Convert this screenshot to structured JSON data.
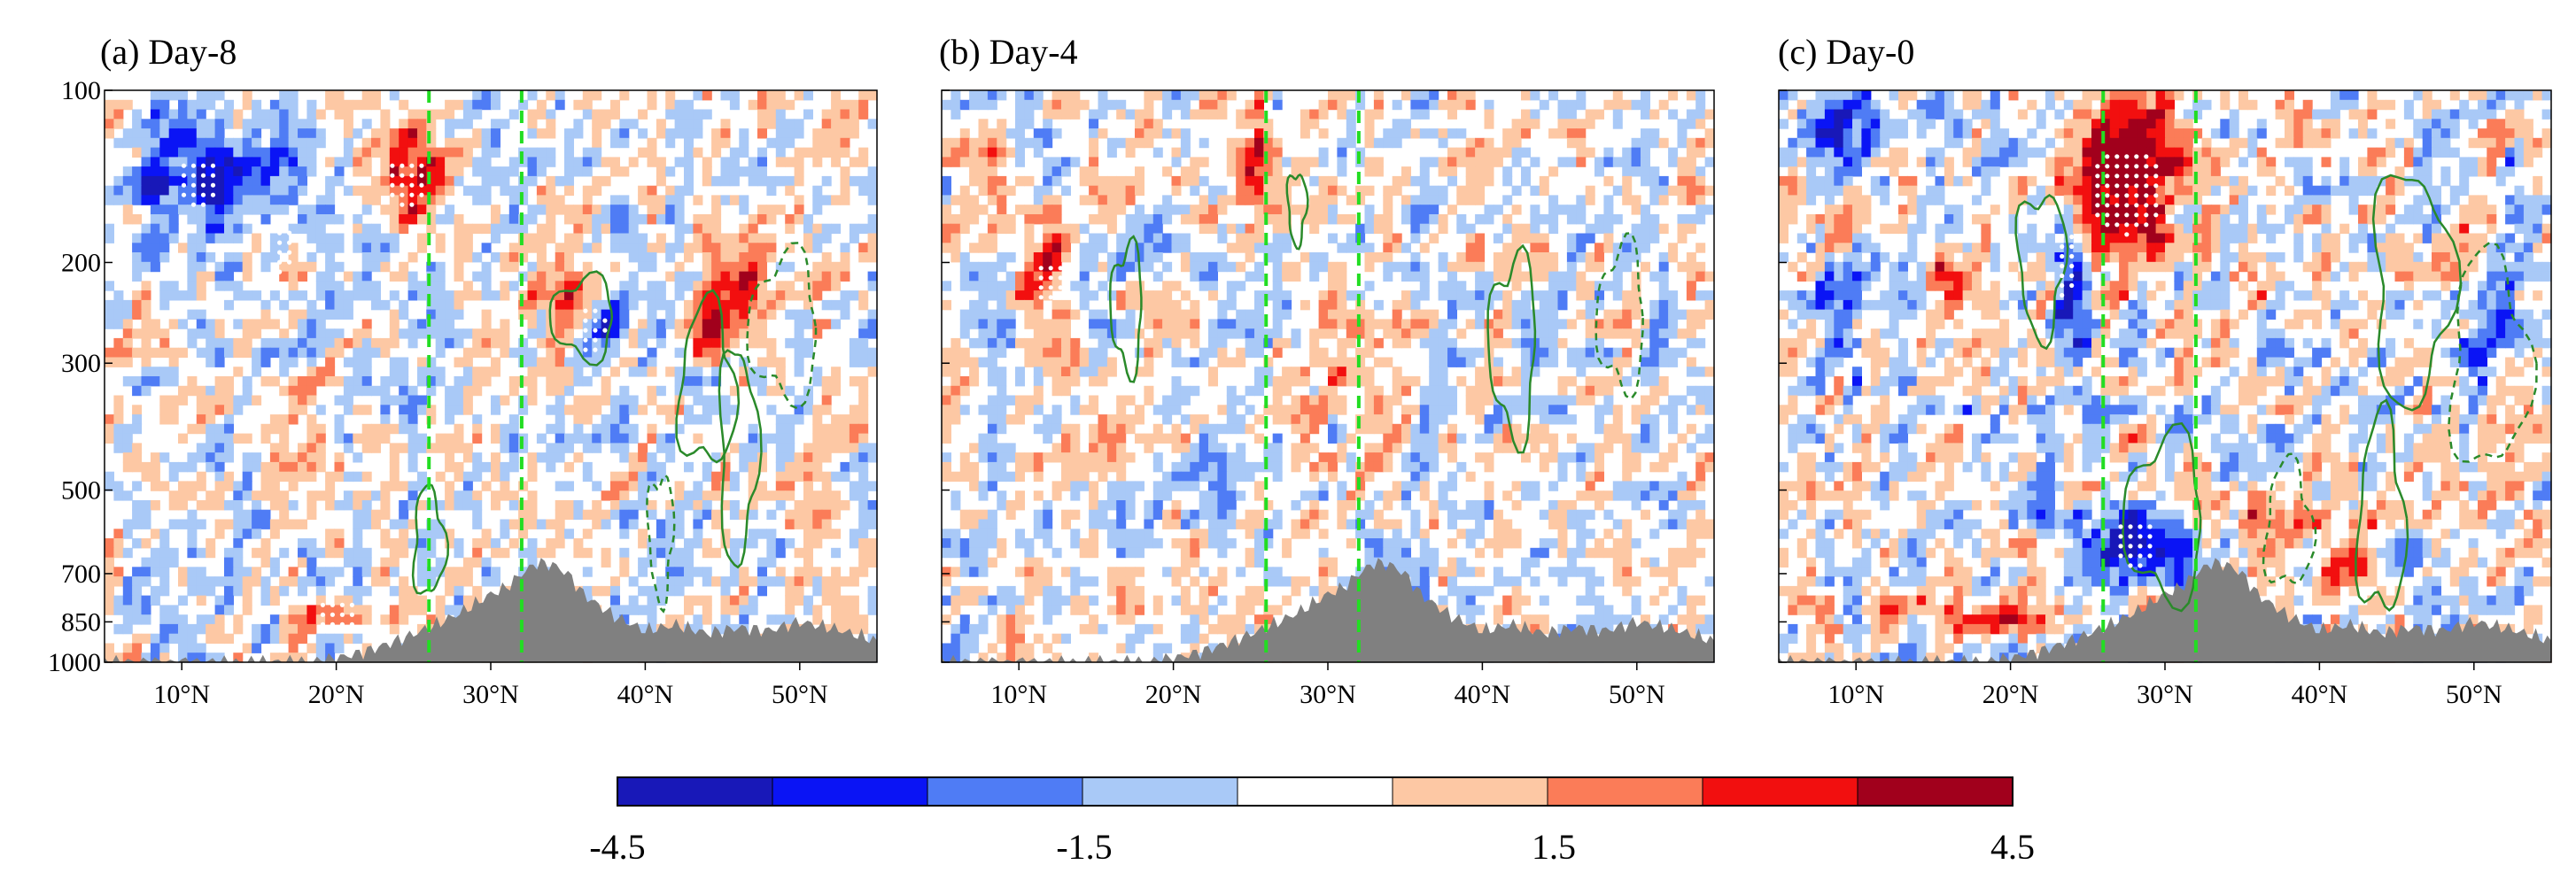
{
  "chart_data": {
    "type": "heatmap",
    "description_units": "pressure-latitude cross section anomaly",
    "panels": [
      {
        "id": "a",
        "title": "(a) Day-8"
      },
      {
        "id": "b",
        "title": "(b) Day-4"
      },
      {
        "id": "c",
        "title": "(c) Day-0"
      }
    ],
    "x_axis": {
      "range_deg": [
        5,
        55
      ],
      "ticks": [
        10,
        20,
        30,
        40,
        50
      ],
      "tick_labels": [
        "10°N",
        "20°N",
        "30°N",
        "40°N",
        "50°N"
      ]
    },
    "y_axis": {
      "range_hpa": [
        1000,
        100
      ],
      "ticks": [
        100,
        200,
        300,
        500,
        700,
        850,
        1000
      ],
      "tick_labels": [
        "100",
        "200",
        "300",
        "500",
        "700",
        "850",
        "1000"
      ]
    },
    "reference_lines_lat": [
      26,
      32
    ],
    "terrain_profile": {
      "lat": [
        5,
        10,
        14,
        18,
        20,
        22,
        24,
        26,
        28,
        30,
        31,
        32,
        33,
        34,
        35,
        36,
        38,
        40,
        42,
        44,
        46,
        48,
        50,
        52,
        54,
        55
      ],
      "p_hpa": [
        1000,
        1000,
        1000,
        1000,
        985,
        955,
        915,
        870,
        820,
        760,
        740,
        700,
        670,
        675,
        700,
        760,
        830,
        880,
        860,
        890,
        870,
        880,
        850,
        870,
        900,
        920
      ]
    },
    "colorbar": {
      "levels": [
        -4.5,
        -3.5,
        -2.5,
        -1.5,
        -0.5,
        0.5,
        1.5,
        2.5,
        3.5,
        4.5
      ],
      "colors": [
        "#1818b8",
        "#0a14f5",
        "#4f7cf5",
        "#a9c9f7",
        "#ffffff",
        "#fdc8a4",
        "#fb7c58",
        "#f20f0f",
        "#a1001c"
      ],
      "tick_labels": [
        "-4.5",
        "-1.5",
        "1.5",
        "4.5"
      ]
    },
    "colors": {
      "terrain": "#808080",
      "reference_line": "#22dd22",
      "contour": "#2a8a2a"
    }
  }
}
